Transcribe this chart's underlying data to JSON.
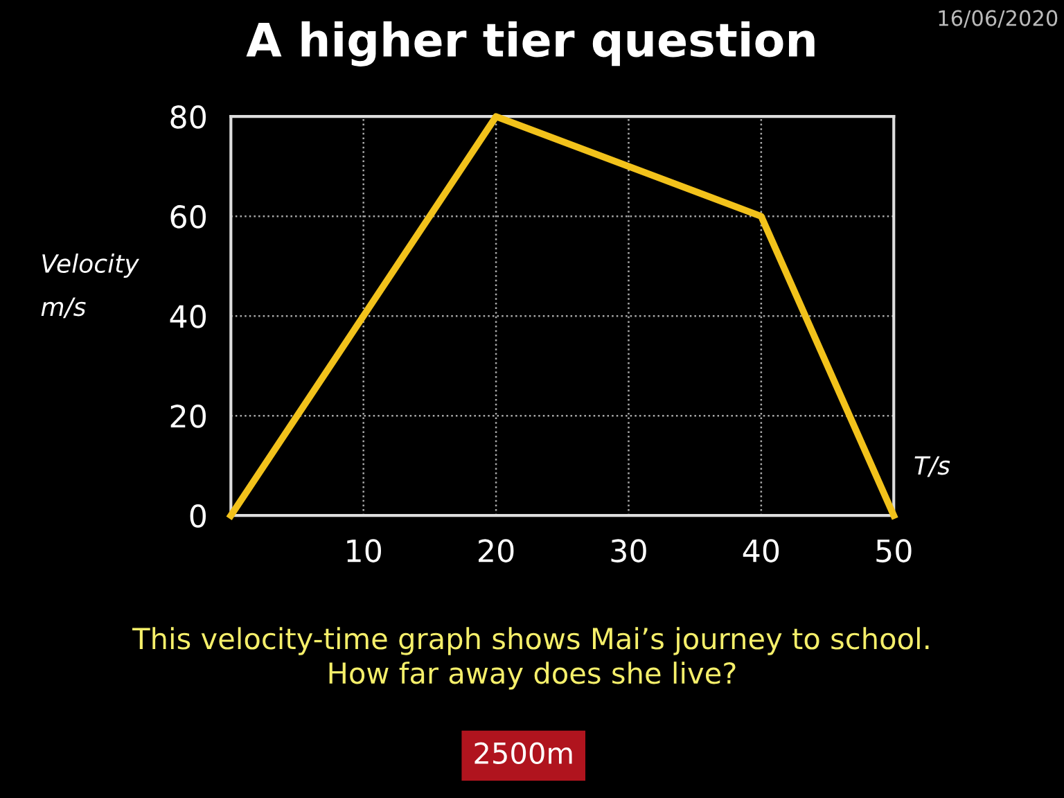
{
  "chart_data": {
    "type": "line",
    "title": "A higher tier question",
    "xlabel": "T/s",
    "ylabel": "Velocity\nm/s",
    "x": [
      0,
      20,
      40,
      50
    ],
    "series": [
      {
        "color": "#f2c21b",
        "values": [
          0,
          80,
          60,
          0
        ]
      }
    ],
    "xlim": [
      0,
      50
    ],
    "ylim": [
      0,
      80
    ],
    "xticks": [
      10,
      20,
      30,
      40,
      50
    ],
    "yticks": [
      0,
      20,
      40,
      60,
      80
    ],
    "grid": true,
    "legend": false,
    "marker": "none",
    "line_style": "solid",
    "annotations": [
      "16/06/2020",
      "This velocity-time graph shows Mai’s journey to school.\nHow far away does she live?",
      "2500m"
    ]
  }
}
